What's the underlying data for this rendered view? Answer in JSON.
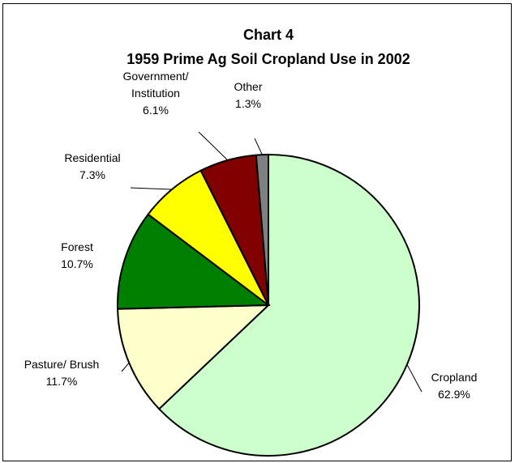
{
  "chart_data": {
    "type": "pie",
    "title": "Chart 4",
    "subtitle": "1959 Prime Ag Soil Cropland Use in 2002",
    "slices": [
      {
        "name": "Cropland",
        "label_lines": [
          "Cropland"
        ],
        "value": 62.9,
        "value_label": "62.9%",
        "color": "#ccffcc"
      },
      {
        "name": "Pasture/ Brush",
        "label_lines": [
          "Pasture/ Brush"
        ],
        "value": 11.7,
        "value_label": "11.7%",
        "color": "#ffffcc"
      },
      {
        "name": "Forest",
        "label_lines": [
          "Forest"
        ],
        "value": 10.7,
        "value_label": "10.7%",
        "color": "#008000"
      },
      {
        "name": "Residential",
        "label_lines": [
          "Residential"
        ],
        "value": 7.3,
        "value_label": "7.3%",
        "color": "#ffff00"
      },
      {
        "name": "Government/ Institution",
        "label_lines": [
          "Government/",
          "Institution"
        ],
        "value": 6.1,
        "value_label": "6.1%",
        "color": "#800000"
      },
      {
        "name": "Other",
        "label_lines": [
          "Other"
        ],
        "value": 1.3,
        "value_label": "1.3%",
        "color": "#808080"
      }
    ]
  }
}
